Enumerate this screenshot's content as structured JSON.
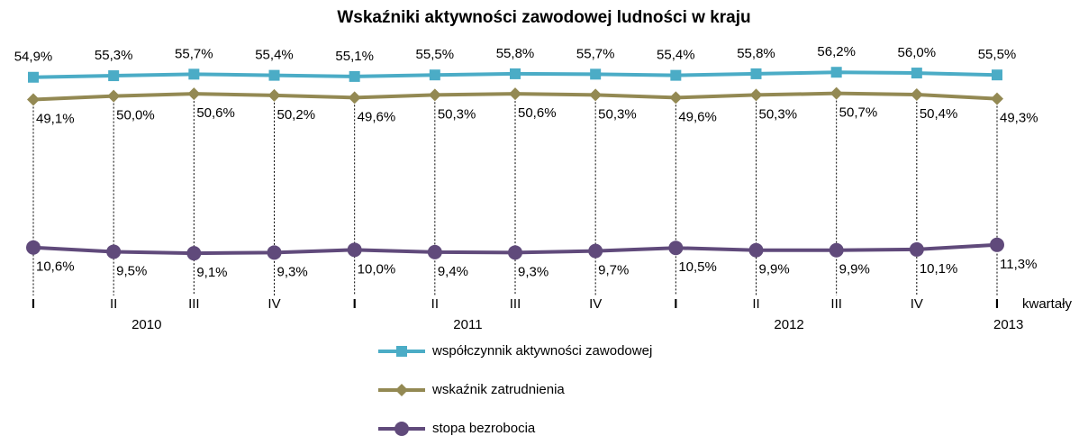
{
  "chart_data": {
    "type": "line",
    "title": "Wskaźniki aktywności zawodowej ludności w kraju",
    "x_label": "kwartały",
    "categories": [
      "I",
      "II",
      "III",
      "IV",
      "I",
      "II",
      "III",
      "IV",
      "I",
      "II",
      "III",
      "IV",
      "I"
    ],
    "years": [
      "2010",
      "2011",
      "2012",
      "2013"
    ],
    "ylim": [
      0,
      60
    ],
    "series": [
      {
        "name": "współczynnik aktywności zawodowej",
        "color": "#4bacc6",
        "marker": "square",
        "values": [
          54.9,
          55.3,
          55.7,
          55.4,
          55.1,
          55.5,
          55.8,
          55.7,
          55.4,
          55.8,
          56.2,
          56.0,
          55.5
        ],
        "value_labels": [
          "54,9%",
          "55,3%",
          "55,7%",
          "55,4%",
          "55,1%",
          "55,5%",
          "55,8%",
          "55,7%",
          "55,4%",
          "55,8%",
          "56,2%",
          "56,0%",
          "55,5%"
        ]
      },
      {
        "name": "wskaźnik zatrudnienia",
        "color": "#938953",
        "marker": "diamond",
        "values": [
          49.1,
          50.0,
          50.6,
          50.2,
          49.6,
          50.3,
          50.6,
          50.3,
          49.6,
          50.3,
          50.7,
          50.4,
          49.3
        ],
        "value_labels": [
          "49,1%",
          "50,0%",
          "50,6%",
          "50,2%",
          "49,6%",
          "50,3%",
          "50,6%",
          "50,3%",
          "49,6%",
          "50,3%",
          "50,7%",
          "50,4%",
          "49,3%"
        ]
      },
      {
        "name": "stopa bezrobocia",
        "color": "#604a7b",
        "marker": "circle",
        "values": [
          10.6,
          9.5,
          9.1,
          9.3,
          10.0,
          9.4,
          9.3,
          9.7,
          10.5,
          9.9,
          9.9,
          10.1,
          11.3
        ],
        "value_labels": [
          "10,6%",
          "9,5%",
          "9,1%",
          "9,3%",
          "10,0%",
          "9,4%",
          "9,3%",
          "9,7%",
          "10,5%",
          "9,9%",
          "9,9%",
          "10,1%",
          "11,3%"
        ]
      }
    ]
  }
}
